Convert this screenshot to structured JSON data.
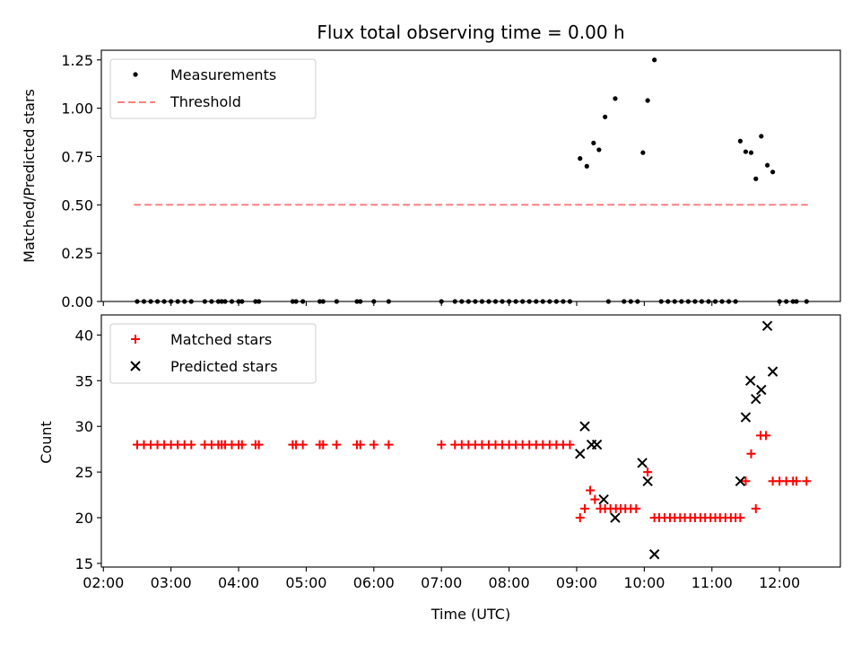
{
  "chart_data": [
    {
      "type": "scatter",
      "title": "Flux total observing time = 0.00 h",
      "xlabel": "",
      "ylabel": "Matched/Predicted stars",
      "xlim": [
        1.97,
        12.9
      ],
      "ylim": [
        0,
        1.3
      ],
      "yticks": [
        0.0,
        0.25,
        0.5,
        0.75,
        1.0,
        1.25
      ],
      "yticklabels": [
        "0.00",
        "0.25",
        "0.50",
        "0.75",
        "1.00",
        "1.25"
      ],
      "legend": "top-left",
      "series": [
        {
          "name": "Measurements",
          "marker": "dot",
          "color": "#000000",
          "x": [
            2.5,
            2.6,
            2.7,
            2.8,
            2.9,
            3.0,
            3.1,
            3.2,
            3.3,
            3.5,
            3.6,
            3.7,
            3.75,
            3.8,
            3.9,
            4.0,
            4.05,
            4.25,
            4.3,
            4.8,
            4.85,
            4.95,
            5.2,
            5.25,
            5.45,
            5.75,
            5.8,
            6.0,
            6.22,
            7.0,
            7.2,
            7.3,
            7.4,
            7.5,
            7.6,
            7.7,
            7.8,
            7.9,
            8.0,
            8.1,
            8.2,
            8.3,
            8.4,
            8.5,
            8.6,
            8.7,
            8.8,
            8.9,
            9.05,
            9.15,
            9.25,
            9.33,
            9.42,
            9.47,
            9.57,
            9.7,
            9.8,
            9.9,
            9.98,
            10.05,
            10.15,
            10.25,
            10.35,
            10.45,
            10.55,
            10.65,
            10.75,
            10.85,
            10.95,
            11.05,
            11.15,
            11.25,
            11.35,
            11.42,
            11.5,
            11.58,
            11.65,
            11.73,
            11.82,
            11.9,
            12.0,
            12.1,
            12.2,
            12.25,
            12.4
          ],
          "y": [
            0,
            0,
            0,
            0,
            0,
            0,
            0,
            0,
            0,
            0,
            0,
            0,
            0,
            0,
            0,
            0,
            0,
            0,
            0,
            0,
            0,
            0,
            0,
            0,
            0,
            0,
            0,
            0,
            0,
            0,
            0,
            0,
            0,
            0,
            0,
            0,
            0,
            0,
            0,
            0,
            0,
            0,
            0,
            0,
            0,
            0,
            0,
            0,
            0.74,
            0.7,
            0.82,
            0.785,
            0.955,
            0,
            1.05,
            0,
            0,
            0,
            0.77,
            1.04,
            1.25,
            0,
            0,
            0,
            0,
            0,
            0,
            0,
            0,
            0,
            0,
            0,
            0,
            0.83,
            0.775,
            0.77,
            0.635,
            0.855,
            0.705,
            0.67,
            0,
            0,
            0,
            0,
            0
          ]
        },
        {
          "name": "Threshold",
          "type": "line",
          "style": "dashed",
          "color": "#ff8080",
          "x": [
            2.45,
            12.42
          ],
          "y": [
            0.5,
            0.5
          ]
        }
      ]
    },
    {
      "type": "scatter",
      "title": "",
      "xlabel": "Time (UTC)",
      "ylabel": "Count",
      "xlim": [
        1.97,
        12.9
      ],
      "ylim": [
        14.6,
        42.2
      ],
      "xticks": [
        2,
        3,
        4,
        5,
        6,
        7,
        8,
        9,
        10,
        11,
        12
      ],
      "xticklabels": [
        "02:00",
        "03:00",
        "04:00",
        "05:00",
        "06:00",
        "07:00",
        "08:00",
        "09:00",
        "10:00",
        "11:00",
        "12:00"
      ],
      "yticks": [
        15,
        20,
        25,
        30,
        35,
        40
      ],
      "yticklabels": [
        "15",
        "20",
        "25",
        "30",
        "35",
        "40"
      ],
      "legend": "top-left",
      "series": [
        {
          "name": "Matched stars",
          "marker": "plus",
          "color": "#ff0000",
          "x": [
            2.5,
            2.6,
            2.7,
            2.8,
            2.9,
            3.0,
            3.1,
            3.2,
            3.3,
            3.5,
            3.6,
            3.7,
            3.75,
            3.8,
            3.9,
            4.0,
            4.05,
            4.25,
            4.3,
            4.8,
            4.85,
            4.95,
            5.2,
            5.25,
            5.45,
            5.75,
            5.8,
            6.0,
            6.22,
            7.0,
            7.2,
            7.3,
            7.4,
            7.5,
            7.6,
            7.7,
            7.8,
            7.9,
            8.0,
            8.1,
            8.2,
            8.3,
            8.4,
            8.5,
            8.6,
            8.7,
            8.8,
            8.9,
            9.05,
            9.12,
            9.2,
            9.27,
            9.35,
            9.42,
            9.5,
            9.58,
            9.65,
            9.72,
            9.8,
            9.88,
            10.05,
            10.15,
            10.22,
            10.3,
            10.38,
            10.45,
            10.53,
            10.6,
            10.68,
            10.75,
            10.83,
            10.9,
            10.98,
            11.05,
            11.12,
            11.2,
            11.28,
            11.35,
            11.42,
            11.5,
            11.58,
            11.65,
            11.72,
            11.8,
            11.9,
            12.0,
            12.1,
            12.2,
            12.25,
            12.4
          ],
          "y": [
            28,
            28,
            28,
            28,
            28,
            28,
            28,
            28,
            28,
            28,
            28,
            28,
            28,
            28,
            28,
            28,
            28,
            28,
            28,
            28,
            28,
            28,
            28,
            28,
            28,
            28,
            28,
            28,
            28,
            28,
            28,
            28,
            28,
            28,
            28,
            28,
            28,
            28,
            28,
            28,
            28,
            28,
            28,
            28,
            28,
            28,
            28,
            28,
            20,
            21,
            23,
            22,
            21,
            21,
            21,
            21,
            21,
            21,
            21,
            21,
            25,
            20,
            20,
            20,
            20,
            20,
            20,
            20,
            20,
            20,
            20,
            20,
            20,
            20,
            20,
            20,
            20,
            20,
            20,
            24,
            27,
            21,
            29,
            29,
            24,
            24,
            24,
            24,
            24,
            24
          ]
        },
        {
          "name": "Predicted stars",
          "marker": "x",
          "color": "#000000",
          "x": [
            9.05,
            9.12,
            9.22,
            9.3,
            9.4,
            9.57,
            9.97,
            10.05,
            10.15,
            11.42,
            11.5,
            11.57,
            11.65,
            11.73,
            11.82,
            11.9
          ],
          "y": [
            27,
            30,
            28,
            28,
            22,
            20,
            26,
            24,
            16,
            24,
            31,
            35,
            33,
            34,
            41,
            36
          ]
        }
      ]
    }
  ]
}
